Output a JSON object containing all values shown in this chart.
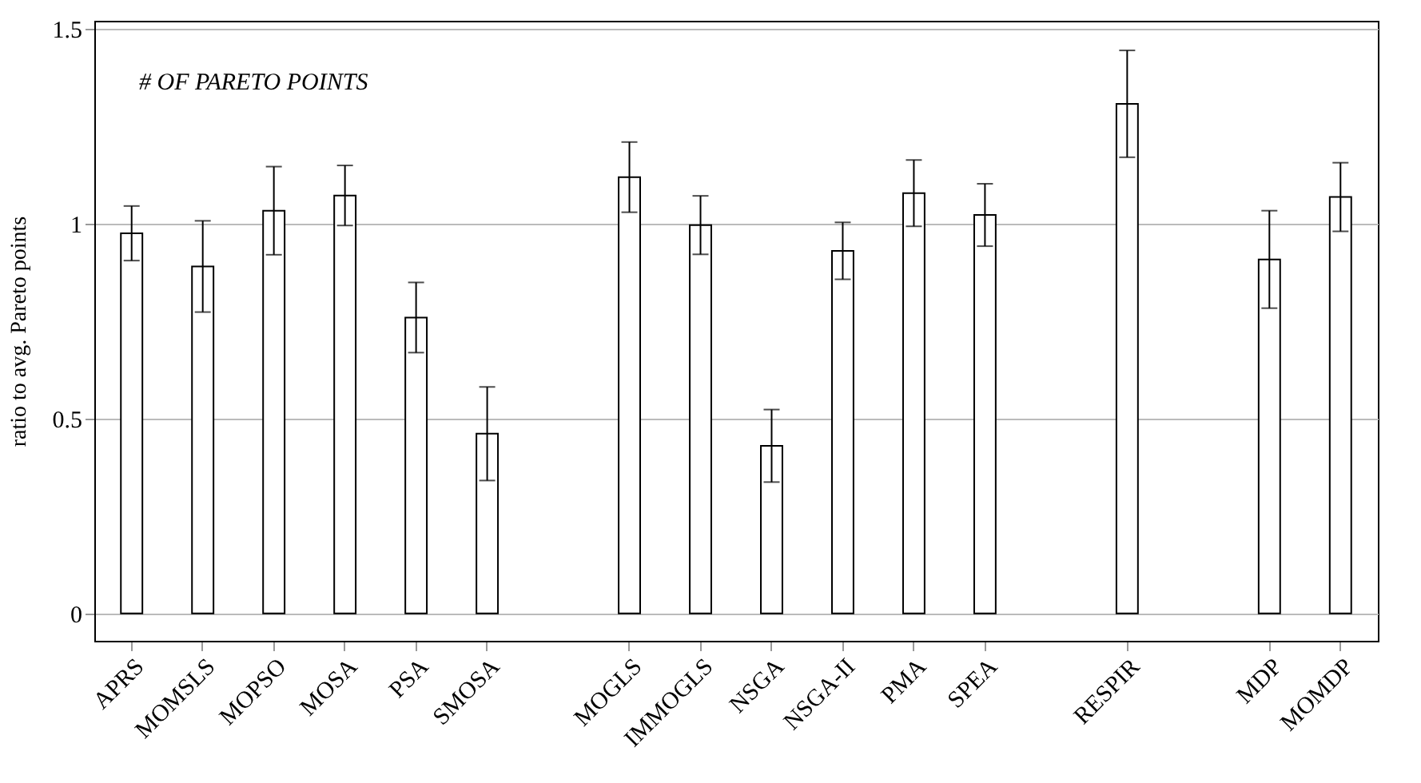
{
  "chart_data": {
    "type": "bar",
    "ylabel": "ratio to avg. Pareto points",
    "annotations": [
      "# OF PARETO POINTS"
    ],
    "categories": [
      "APRS",
      "MOMSLS",
      "MOPSO",
      "MOSA",
      "PSA",
      "SMOSA",
      null,
      "MOGLS",
      "IMMOGLS",
      "NSGA",
      "NSGA-II",
      "PMA",
      "SPEA",
      null,
      "RESPIR",
      null,
      "MDP",
      "MOMDP"
    ],
    "values": [
      0.975,
      0.89,
      1.033,
      1.072,
      0.759,
      0.461,
      null,
      1.119,
      0.996,
      0.43,
      0.93,
      1.078,
      1.022,
      null,
      1.307,
      null,
      0.908,
      1.068
    ],
    "errors": [
      0.07,
      0.117,
      0.113,
      0.077,
      0.09,
      0.12,
      null,
      0.09,
      0.075,
      0.093,
      0.073,
      0.085,
      0.08,
      null,
      0.137,
      null,
      0.125,
      0.088
    ],
    "color": "#ffffff",
    "ylim": [
      -0.07,
      1.52
    ],
    "yticks": [
      0,
      0.5,
      1,
      1.5
    ],
    "grid": "y"
  }
}
